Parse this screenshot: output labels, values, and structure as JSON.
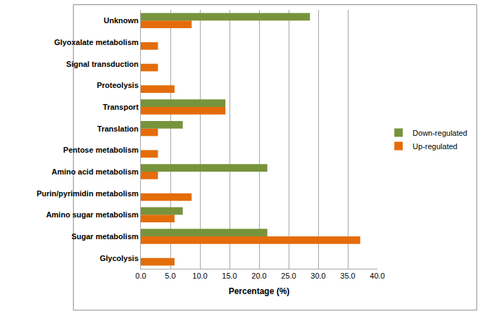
{
  "chart_data": {
    "type": "bar",
    "orientation": "horizontal",
    "x_label": "Percentage (%)",
    "categories": [
      "Glycolysis",
      "Sugar metabolism",
      "Amino sugar metabolism",
      "Purin/pyrimidin metabolism",
      "Amino acid metabolism",
      "Pentose metabolism",
      "Translation",
      "Transport",
      "Proteolysis",
      "Signal transduction",
      "Glyoxalate metabolism",
      "Unknown"
    ],
    "series": [
      {
        "name": "Down-regulated",
        "color": "#77933C",
        "values": [
          0,
          21.4,
          7.1,
          0,
          21.4,
          0,
          7.1,
          14.3,
          0,
          0,
          0,
          28.6
        ]
      },
      {
        "name": "Up-regulated",
        "color": "#E46C0A",
        "values": [
          5.7,
          37.1,
          5.7,
          8.6,
          2.9,
          2.9,
          2.9,
          14.3,
          5.7,
          2.9,
          2.9,
          8.6
        ]
      }
    ],
    "xlim": [
      0,
      40
    ],
    "xticks": [
      {
        "value": 0,
        "label": "0.0"
      },
      {
        "value": 5,
        "label": "5.0"
      },
      {
        "value": 10,
        "label": "10.0"
      },
      {
        "value": 15,
        "label": "15.0"
      },
      {
        "value": 20,
        "label": "20.0"
      },
      {
        "value": 25,
        "label": "25.0"
      },
      {
        "value": 30,
        "label": "30.0"
      },
      {
        "value": 35,
        "label": "35.0"
      },
      {
        "value": 40,
        "label": "40.0"
      }
    ],
    "grid": true,
    "legend": "right"
  }
}
